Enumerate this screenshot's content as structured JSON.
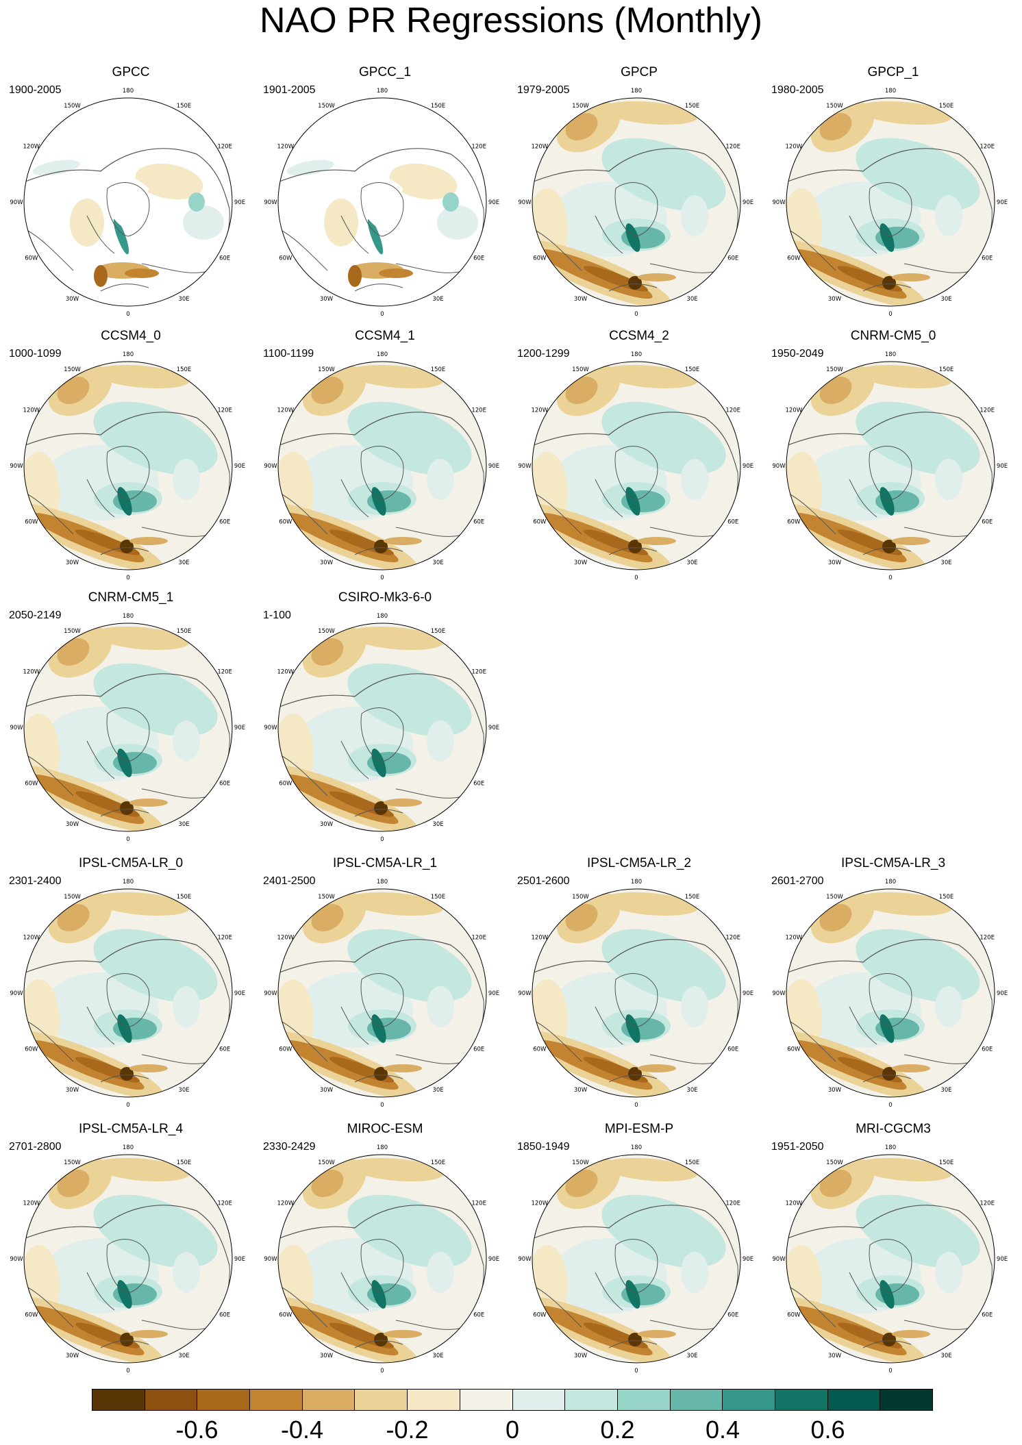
{
  "title": "NAO PR Regressions (Monthly)",
  "lon_labels": [
    "180",
    "150E",
    "120E",
    "90E",
    "60E",
    "30E",
    "0",
    "30W",
    "60W",
    "90W",
    "120W",
    "150W"
  ],
  "panels": [
    {
      "name": "GPCC",
      "years": "1900-2005",
      "type": "obs_gpcc"
    },
    {
      "name": "GPCC_1",
      "years": "1901-2005",
      "type": "obs_gpcc"
    },
    {
      "name": "GPCP",
      "years": "1979-2005",
      "type": "obs_gpcp"
    },
    {
      "name": "GPCP_1",
      "years": "1980-2005",
      "type": "obs_gpcp"
    },
    {
      "name": "CCSM4_0",
      "years": "1000-1099",
      "type": "model"
    },
    {
      "name": "CCSM4_1",
      "years": "1100-1199",
      "type": "model"
    },
    {
      "name": "CCSM4_2",
      "years": "1200-1299",
      "type": "model"
    },
    {
      "name": "CNRM-CM5_0",
      "years": "1950-2049",
      "type": "model"
    },
    {
      "name": "CNRM-CM5_1",
      "years": "2050-2149",
      "type": "model"
    },
    {
      "name": "CSIRO-Mk3-6-0",
      "years": "1-100",
      "type": "model"
    },
    {
      "name": "IPSL-CM5A-LR_0",
      "years": "2301-2400",
      "type": "model"
    },
    {
      "name": "IPSL-CM5A-LR_1",
      "years": "2401-2500",
      "type": "model"
    },
    {
      "name": "IPSL-CM5A-LR_2",
      "years": "2501-2600",
      "type": "model"
    },
    {
      "name": "IPSL-CM5A-LR_3",
      "years": "2601-2700",
      "type": "model"
    },
    {
      "name": "IPSL-CM5A-LR_4",
      "years": "2701-2800",
      "type": "model"
    },
    {
      "name": "MIROC-ESM",
      "years": "2330-2429",
      "type": "model"
    },
    {
      "name": "MPI-ESM-P",
      "years": "1850-1949",
      "type": "model"
    },
    {
      "name": "MRI-CGCM3",
      "years": "1951-2050",
      "type": "model"
    }
  ],
  "colorbar": {
    "colors": [
      "#5a3505",
      "#8c5110",
      "#a9691c",
      "#c38432",
      "#d9ad63",
      "#ebd398",
      "#f5e8c5",
      "#f4f1e8",
      "#e1efec",
      "#c4e7e0",
      "#97d4c8",
      "#66b7a9",
      "#36978b",
      "#127465",
      "#045a4e",
      "#01392f"
    ],
    "tick_labels": [
      "-0.6",
      "-0.4",
      "-0.2",
      "0",
      "0.2",
      "0.4",
      "0.6"
    ]
  }
}
